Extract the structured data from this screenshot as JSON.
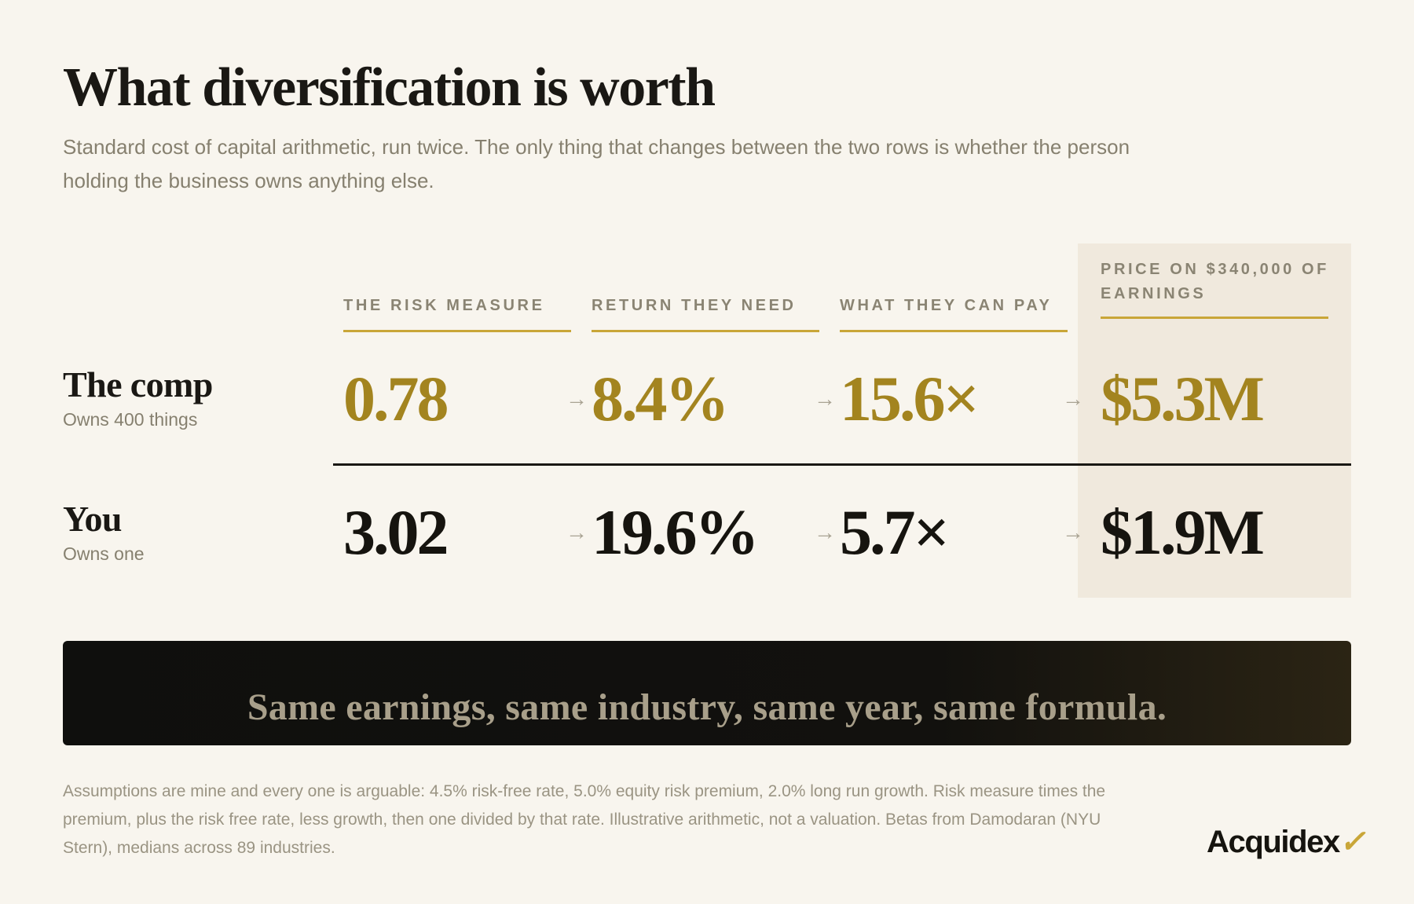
{
  "title": "What diversification is worth",
  "subtitle": "Standard cost of capital arithmetic, run twice. The only thing that changes between the two rows is whether the person holding the business owns anything else.",
  "columns": [
    "THE RISK MEASURE",
    "RETURN THEY NEED",
    "WHAT THEY CAN PAY",
    "PRICE ON $340,000 OF EARNINGS"
  ],
  "arrow_glyph": "→",
  "rows": [
    {
      "name": "The comp",
      "sub": "Owns 400 things",
      "values": [
        "0.78",
        "8.4%",
        "15.6×",
        "$5.3M"
      ]
    },
    {
      "name": "You",
      "sub": "Owns one",
      "values": [
        "3.02",
        "19.6%",
        "5.7×",
        "$1.9M"
      ]
    }
  ],
  "banner": "Same earnings, same industry, same year, same formula.",
  "footnote": "Assumptions are mine and every one is arguable: 4.5% risk-free rate, 5.0% equity risk premium, 2.0% long run growth. Risk measure times the premium, plus the risk free rate, less growth, then one divided by that rate. Illustrative arithmetic, not a valuation. Betas from Damodaran (NYU Stern), medians across 89 industries.",
  "logo": {
    "text": "Acquidex",
    "mark": "✓"
  },
  "colors": {
    "gold": "#a3841f",
    "accent_rule": "#c9a638",
    "highlight_bg": "#f0e9dd",
    "background": "#f8f5ee"
  }
}
